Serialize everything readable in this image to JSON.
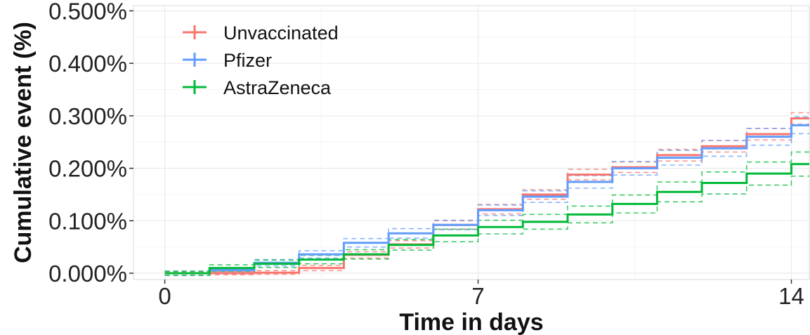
{
  "chart_data": {
    "type": "line",
    "step": true,
    "title": "",
    "xlabel": "Time in days",
    "ylabel": "Cumulative event (%)",
    "xlim": [
      -0.7,
      14.4
    ],
    "ylim": [
      -0.012,
      0.51
    ],
    "x_ticks": [
      0,
      7,
      14
    ],
    "x_tick_labels": [
      "0",
      "7",
      "14"
    ],
    "y_ticks": [
      0,
      0.1,
      0.2,
      0.3,
      0.4,
      0.5
    ],
    "y_tick_labels": [
      "0.000%",
      "0.100%",
      "0.200%",
      "0.300%",
      "0.400%",
      "0.500%"
    ],
    "grid": true,
    "legend_position": "top-left",
    "x": [
      0,
      1,
      2,
      3,
      4,
      5,
      6,
      7,
      8,
      9,
      10,
      11,
      12,
      13,
      14
    ],
    "series": [
      {
        "name": "Unvaccinated",
        "color": "#f8766d",
        "values": [
          0.0,
          0.0,
          0.001,
          0.01,
          0.035,
          0.055,
          0.092,
          0.122,
          0.15,
          0.188,
          0.202,
          0.225,
          0.242,
          0.265,
          0.295
        ],
        "lower": [
          -0.004,
          -0.003,
          -0.002,
          0.005,
          0.029,
          0.048,
          0.084,
          0.113,
          0.141,
          0.178,
          0.192,
          0.214,
          0.231,
          0.254,
          0.284
        ],
        "upper": [
          0.003,
          0.003,
          0.005,
          0.015,
          0.041,
          0.062,
          0.1,
          0.131,
          0.159,
          0.198,
          0.212,
          0.236,
          0.253,
          0.276,
          0.306
        ]
      },
      {
        "name": "Pfizer",
        "color": "#619cff",
        "values": [
          0.0,
          0.006,
          0.02,
          0.036,
          0.058,
          0.076,
          0.092,
          0.12,
          0.146,
          0.174,
          0.2,
          0.22,
          0.238,
          0.26,
          0.282
        ],
        "lower": [
          -0.004,
          0.002,
          0.014,
          0.029,
          0.05,
          0.067,
          0.083,
          0.11,
          0.135,
          0.162,
          0.187,
          0.206,
          0.223,
          0.244,
          0.266
        ],
        "upper": [
          0.004,
          0.01,
          0.026,
          0.043,
          0.066,
          0.085,
          0.101,
          0.13,
          0.157,
          0.186,
          0.213,
          0.234,
          0.253,
          0.276,
          0.298
        ]
      },
      {
        "name": "AstraZeneca",
        "color": "#00ba38",
        "values": [
          0.0,
          0.01,
          0.018,
          0.026,
          0.036,
          0.054,
          0.072,
          0.088,
          0.098,
          0.112,
          0.132,
          0.155,
          0.172,
          0.19,
          0.208
        ],
        "lower": [
          -0.004,
          0.004,
          0.011,
          0.018,
          0.027,
          0.044,
          0.06,
          0.075,
          0.084,
          0.096,
          0.115,
          0.136,
          0.151,
          0.168,
          0.185
        ],
        "upper": [
          0.004,
          0.016,
          0.025,
          0.034,
          0.045,
          0.064,
          0.084,
          0.101,
          0.112,
          0.128,
          0.149,
          0.174,
          0.193,
          0.212,
          0.231
        ]
      }
    ]
  }
}
